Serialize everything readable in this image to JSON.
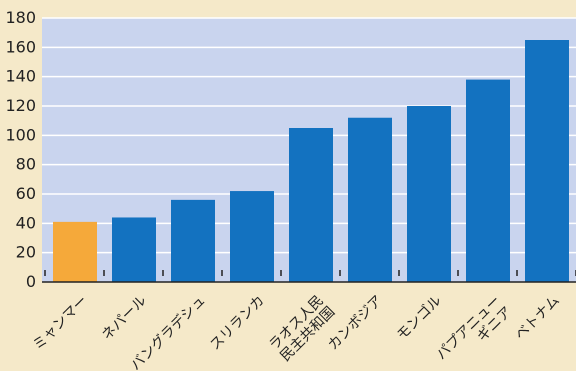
{
  "chart_data": {
    "type": "bar",
    "categories": [
      [
        "ミャンマー"
      ],
      [
        "ネパール"
      ],
      [
        "バングラデシュ"
      ],
      [
        "スリランカ"
      ],
      [
        "ラオス人民",
        "民主共和国"
      ],
      [
        "カンボジア"
      ],
      [
        "モンゴル"
      ],
      [
        "パプアニュー",
        "ギニア"
      ],
      [
        "ベトナム"
      ]
    ],
    "values": [
      41,
      44,
      56,
      62,
      105,
      112,
      120,
      138,
      165
    ],
    "highlight_index": 0,
    "ylim": [
      0,
      180
    ],
    "yticks": [
      0,
      20,
      40,
      60,
      80,
      100,
      120,
      140,
      160,
      180
    ],
    "title": "",
    "xlabel": "",
    "ylabel": "",
    "grid": true,
    "colors": {
      "page_background": "#f5e9c9",
      "plot_background": "#c9d4ee",
      "bar": "#1372c0",
      "highlight_bar": "#f5a93a",
      "grid": "#ffffff",
      "axis": "#222222"
    }
  }
}
